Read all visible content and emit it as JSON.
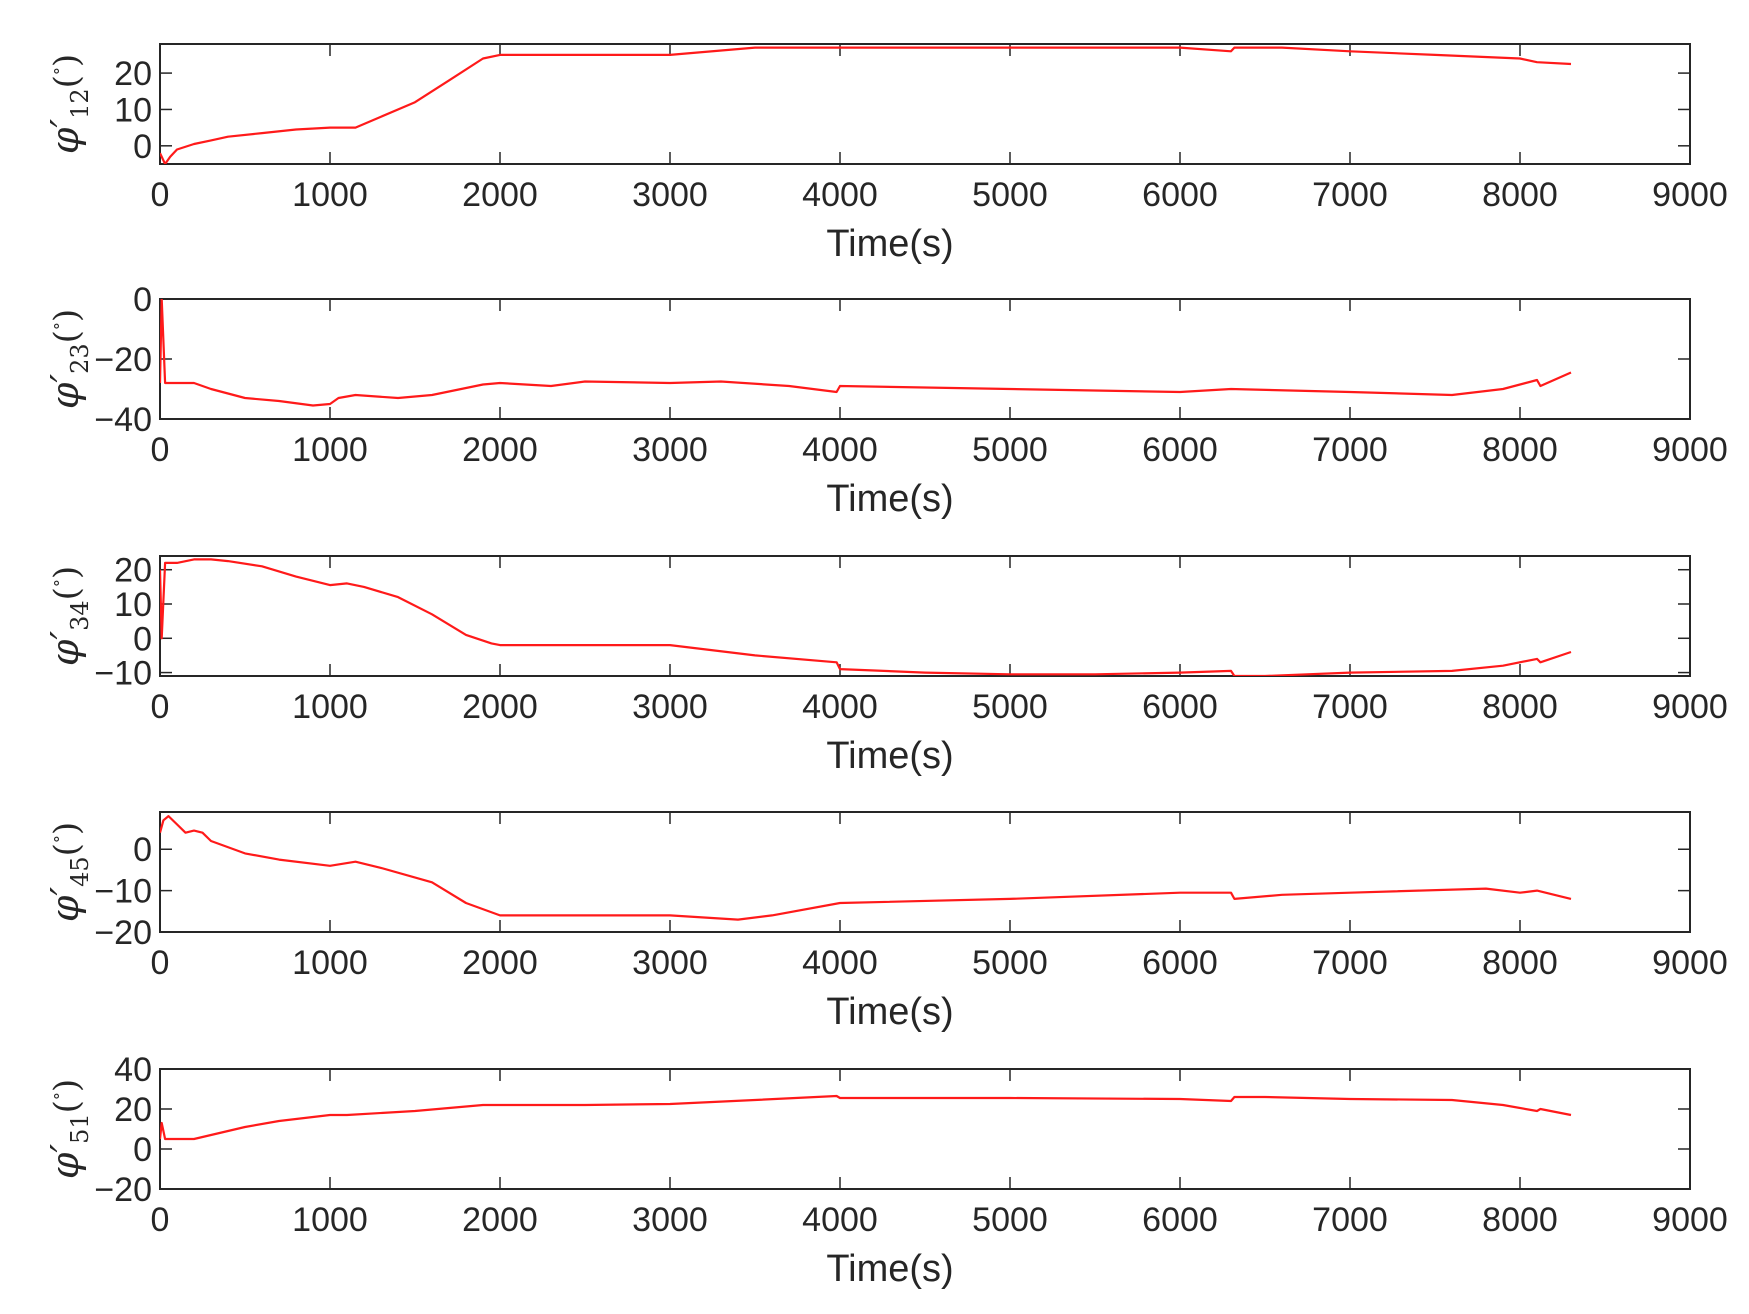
{
  "chart_data": [
    {
      "type": "line",
      "xlabel": "Time(s)",
      "ylabel": {
        "symbol": "φ′",
        "subscript": "12",
        "unit_open": "(",
        "unit_degree": "°",
        "unit_close": ")"
      },
      "xlim": [
        0,
        9000
      ],
      "ylim": [
        -5,
        28
      ],
      "xticks": [
        0,
        1000,
        2000,
        3000,
        4000,
        5000,
        6000,
        7000,
        8000,
        9000
      ],
      "yticks": [
        0,
        10,
        20
      ],
      "grid": false,
      "line_color": "#ff1a1a",
      "series": [
        {
          "x": [
            0,
            30,
            60,
            100,
            200,
            300,
            400,
            600,
            800,
            1000,
            1150,
            1300,
            1500,
            1700,
            1900,
            2000,
            2500,
            3000,
            3500,
            4000,
            4500,
            5000,
            5500,
            6000,
            6300,
            6320,
            6600,
            7000,
            7500,
            8000,
            8100,
            8300
          ],
          "y": [
            -2,
            -5,
            -3,
            -1,
            0.5,
            1.5,
            2.5,
            3.5,
            4.5,
            5,
            5,
            8,
            12,
            18,
            24,
            25,
            25,
            25,
            27,
            27,
            27,
            27,
            27,
            27,
            26,
            27,
            27,
            26,
            25,
            24,
            23,
            22.5
          ]
        }
      ]
    },
    {
      "type": "line",
      "xlabel": "Time(s)",
      "ylabel": {
        "symbol": "φ′",
        "subscript": "23",
        "unit_open": "(",
        "unit_degree": "°",
        "unit_close": ")"
      },
      "xlim": [
        0,
        9000
      ],
      "ylim": [
        -40,
        0
      ],
      "xticks": [
        0,
        1000,
        2000,
        3000,
        4000,
        5000,
        6000,
        7000,
        8000,
        9000
      ],
      "yticks": [
        -40,
        -20,
        0
      ],
      "grid": false,
      "line_color": "#ff1a1a",
      "series": [
        {
          "x": [
            0,
            10,
            30,
            60,
            200,
            300,
            500,
            700,
            900,
            1000,
            1050,
            1150,
            1400,
            1600,
            1900,
            2000,
            2300,
            2500,
            3000,
            3300,
            3700,
            3980,
            4000,
            5000,
            6000,
            6300,
            7000,
            7600,
            7900,
            8100,
            8120,
            8300
          ],
          "y": [
            -28,
            0,
            -28,
            -28,
            -28,
            -30,
            -33,
            -34,
            -35.5,
            -35,
            -33,
            -32,
            -33,
            -32,
            -28.5,
            -28,
            -29,
            -27.5,
            -28,
            -27.5,
            -29,
            -31,
            -29,
            -30,
            -31,
            -30,
            -31,
            -32,
            -30,
            -27,
            -29,
            -24.5
          ]
        }
      ]
    },
    {
      "type": "line",
      "xlabel": "Time(s)",
      "ylabel": {
        "symbol": "φ′",
        "subscript": "34",
        "unit_open": "(",
        "unit_degree": "°",
        "unit_close": ")"
      },
      "xlim": [
        0,
        9000
      ],
      "ylim": [
        -11,
        24
      ],
      "xticks": [
        0,
        1000,
        2000,
        3000,
        4000,
        5000,
        6000,
        7000,
        8000,
        9000
      ],
      "yticks": [
        -10,
        0,
        10,
        20
      ],
      "grid": false,
      "line_color": "#ff1a1a",
      "series": [
        {
          "x": [
            0,
            10,
            30,
            100,
            200,
            300,
            400,
            600,
            800,
            1000,
            1100,
            1200,
            1400,
            1600,
            1800,
            1950,
            2000,
            2500,
            3000,
            3500,
            3980,
            4000,
            4500,
            5000,
            5500,
            6000,
            6300,
            6320,
            6500,
            7000,
            7600,
            7900,
            8100,
            8120,
            8300
          ],
          "y": [
            20,
            0,
            22,
            22,
            23,
            23,
            22.5,
            21,
            18,
            15.5,
            16,
            15,
            12,
            7,
            1,
            -1.5,
            -2,
            -2,
            -2,
            -5,
            -7,
            -9,
            -10,
            -10.5,
            -10.5,
            -10,
            -9.5,
            -11,
            -11,
            -10,
            -9.5,
            -8,
            -6,
            -7,
            -4
          ]
        }
      ]
    },
    {
      "type": "line",
      "xlabel": "Time(s)",
      "ylabel": {
        "symbol": "φ′",
        "subscript": "45",
        "unit_open": "(",
        "unit_degree": "°",
        "unit_close": ")"
      },
      "xlim": [
        0,
        9000
      ],
      "ylim": [
        -20,
        9
      ],
      "xticks": [
        0,
        1000,
        2000,
        3000,
        4000,
        5000,
        6000,
        7000,
        8000,
        9000
      ],
      "yticks": [
        -20,
        -10,
        0
      ],
      "grid": false,
      "line_color": "#ff1a1a",
      "series": [
        {
          "x": [
            0,
            20,
            50,
            100,
            150,
            200,
            250,
            300,
            500,
            700,
            1000,
            1150,
            1300,
            1600,
            1800,
            2000,
            2500,
            3000,
            3400,
            3600,
            4000,
            5000,
            6000,
            6300,
            6320,
            6600,
            7000,
            7800,
            8000,
            8100,
            8300
          ],
          "y": [
            4,
            7,
            8,
            6,
            4,
            4.5,
            4,
            2,
            -1,
            -2.5,
            -4,
            -3,
            -4.5,
            -8,
            -13,
            -16,
            -16,
            -16,
            -17,
            -16,
            -13,
            -12,
            -10.5,
            -10.5,
            -12,
            -11,
            -10.5,
            -9.5,
            -10.5,
            -10,
            -12
          ]
        }
      ]
    },
    {
      "type": "line",
      "xlabel": "Time(s)",
      "ylabel": {
        "symbol": "φ′",
        "subscript": "51",
        "unit_open": "(",
        "unit_degree": "°",
        "unit_close": ")"
      },
      "xlim": [
        0,
        9000
      ],
      "ylim": [
        -20,
        40
      ],
      "xticks": [
        0,
        1000,
        2000,
        3000,
        4000,
        5000,
        6000,
        7000,
        8000,
        9000
      ],
      "yticks": [
        -20,
        0,
        20,
        40
      ],
      "grid": false,
      "line_color": "#ff1a1a",
      "series": [
        {
          "x": [
            0,
            10,
            30,
            100,
            200,
            300,
            500,
            700,
            1000,
            1100,
            1500,
            1900,
            2500,
            3000,
            3500,
            3980,
            4000,
            5000,
            6000,
            6300,
            6320,
            6500,
            7000,
            7600,
            7900,
            8100,
            8120,
            8300
          ],
          "y": [
            5,
            13,
            5,
            5,
            5,
            7,
            11,
            14,
            17,
            17,
            19,
            22,
            22,
            22.5,
            24.5,
            26.5,
            25.5,
            25.5,
            25,
            24,
            26,
            26,
            25,
            24.5,
            22,
            19,
            20,
            17
          ]
        }
      ]
    }
  ]
}
